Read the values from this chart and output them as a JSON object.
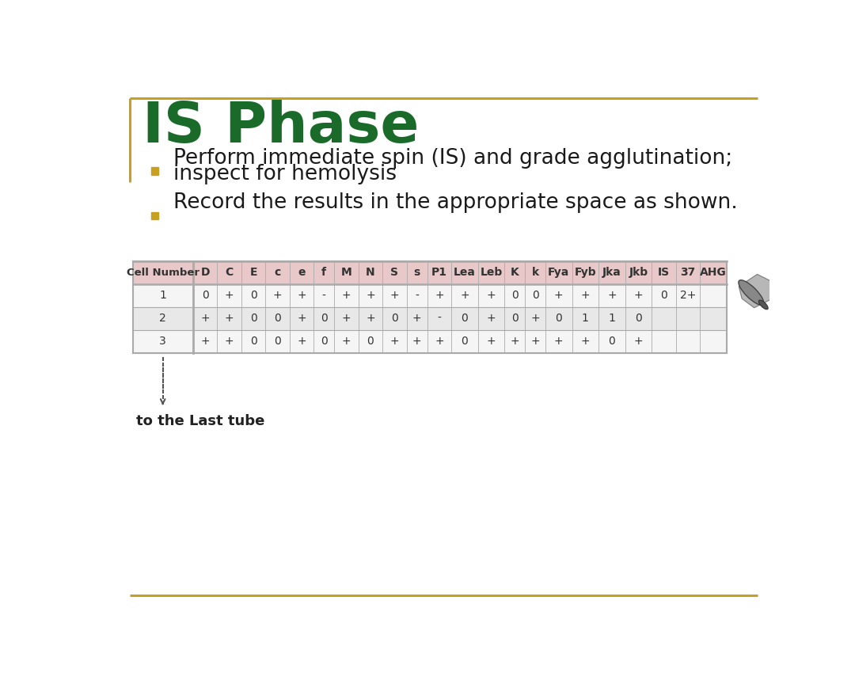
{
  "title": "IS Phase",
  "title_color": "#1a6b2a",
  "title_fontsize": 52,
  "background_color": "#ffffff",
  "border_color_top": "#c8a020",
  "border_color_left": "#c8a020",
  "bullet_color": "#c8a020",
  "bullet_points": [
    "Perform immediate spin (IS) and grade agglutination;\ninspect for hemolysis",
    "Record the results in the appropriate space as shown."
  ],
  "bullet_fontsize": 19,
  "table_header": [
    "Cell Number",
    "D",
    "C",
    "E",
    "c",
    "e",
    "f",
    "M",
    "N",
    "S",
    "s",
    "P1",
    "Lea",
    "Leb",
    "K",
    "k",
    "Fya",
    "Fyb",
    "Jka",
    "Jkb",
    "IS",
    "37",
    "AHG"
  ],
  "table_data": [
    [
      "1",
      "0",
      "+",
      "0",
      "+",
      "+",
      "-",
      "+",
      "+",
      "+",
      "-",
      "+",
      "+",
      "+",
      "0",
      "0",
      "+",
      "+",
      "+",
      "+",
      "0",
      "2+",
      ""
    ],
    [
      "2",
      "+",
      "+",
      "0",
      "0",
      "+",
      "0",
      "+",
      "+",
      "0",
      "+",
      "-",
      "0",
      "+",
      "0",
      "+",
      "0",
      "1",
      "1",
      "0",
      "",
      "",
      ""
    ],
    [
      "3",
      "+",
      "+",
      "0",
      "0",
      "+",
      "0",
      "+",
      "0",
      "+",
      "+",
      "+",
      "0",
      "+",
      "+",
      "+",
      "+",
      "+",
      "0",
      "+",
      "",
      "",
      ""
    ]
  ],
  "table_header_bg": "#e8c8c8",
  "table_row1_bg": "#f5f5f5",
  "table_row2_bg": "#e8e8e8",
  "footer_text": "to the Last tube",
  "footer_fontsize": 13,
  "bottom_line_color": "#c8a020"
}
